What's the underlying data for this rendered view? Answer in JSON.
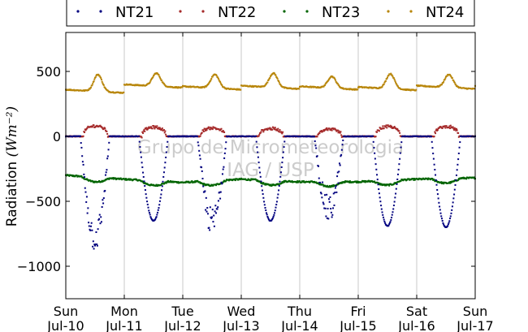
{
  "chart_data": {
    "type": "scatter",
    "title": "",
    "ylabel": "Radiation",
    "ylabel_unit": "(Wm⁻²)",
    "ylim": [
      -1250,
      800
    ],
    "yticks": [
      500,
      0,
      -500,
      -1000
    ],
    "ytick_labels": [
      "500",
      "0",
      "−500",
      "−1000"
    ],
    "xlim": [
      0,
      7
    ],
    "xticks": [
      {
        "day": "Sun",
        "date": "Jul-10"
      },
      {
        "day": "Mon",
        "date": "Jul-11"
      },
      {
        "day": "Tue",
        "date": "Jul-12"
      },
      {
        "day": "Wed",
        "date": "Jul-13"
      },
      {
        "day": "Thu",
        "date": "Jul-14"
      },
      {
        "day": "Fri",
        "date": "Jul-15"
      },
      {
        "day": "Sat",
        "date": "Jul-16"
      },
      {
        "day": "Sun",
        "date": "Jul-17"
      }
    ],
    "grid": "vertical",
    "legend_position": "top",
    "watermark": [
      "Grupo de Micrometeorologia",
      "IAG / USP"
    ],
    "series": [
      {
        "name": "NT21",
        "color": "#00007f",
        "description": "shortwave, negative daytime dips",
        "baseline": 0,
        "daily_peak": [
          -780,
          -650,
          -660,
          -650,
          -570,
          -690,
          -700
        ]
      },
      {
        "name": "NT22",
        "color": "#a52a2a",
        "baseline": 0,
        "daily_peak": [
          80,
          70,
          65,
          60,
          55,
          75,
          75
        ]
      },
      {
        "name": "NT23",
        "color": "#006400",
        "base": [
          -300,
          -330,
          -355,
          -330,
          -350,
          -350,
          -330,
          -320
        ]
      },
      {
        "name": "NT24",
        "color": "#b8860b",
        "base": [
          360,
          400,
          385,
          390,
          385,
          380,
          390,
          390
        ],
        "daily_peak": [
          490,
          500,
          490,
          500,
          475,
          495,
          490
        ]
      }
    ]
  }
}
